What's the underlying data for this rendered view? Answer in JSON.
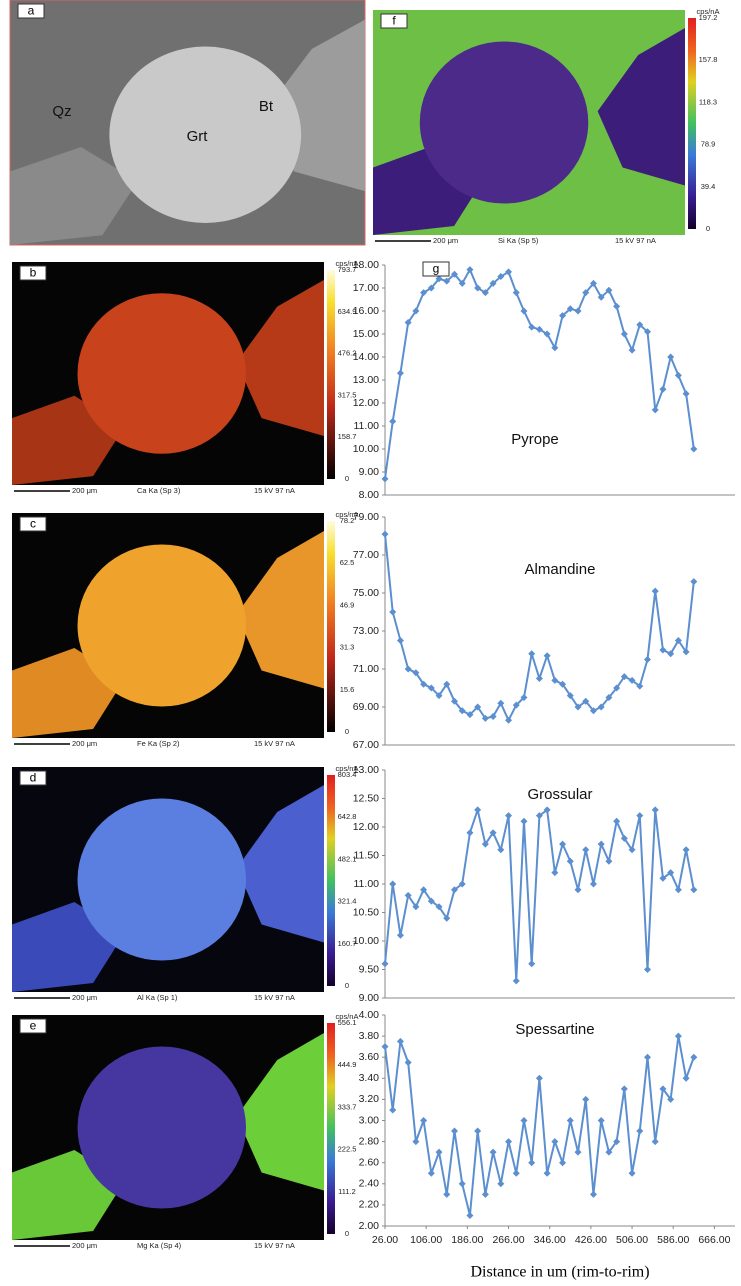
{
  "panels": [
    {
      "letter": "a",
      "labels": [
        "Qz",
        "Grt",
        "Bt"
      ]
    },
    {
      "letter": "f",
      "unit": "cps/nA",
      "scale_ticks": [
        "197.2",
        "157.8",
        "118.3",
        "78.9",
        "39.4",
        "0"
      ],
      "scale_bar": "200 μm",
      "signal": "Si Ka (Sp 5)",
      "conditions": "15 kV 97 nA"
    },
    {
      "letter": "b",
      "unit": "cps/nA",
      "scale_ticks": [
        "793.7",
        "634.9",
        "476.2",
        "317.5",
        "158.7",
        "0"
      ],
      "scale_bar": "200 μm",
      "signal": "Ca Ka (Sp 3)",
      "conditions": "15 kV 97 nA"
    },
    {
      "letter": "c",
      "unit": "cps/nA",
      "scale_ticks": [
        "78.2",
        "62.5",
        "46.9",
        "31.3",
        "15.6",
        "0"
      ],
      "scale_bar": "200 μm",
      "signal": "Fe Ka (Sp 2)",
      "conditions": "15 kV 97 nA"
    },
    {
      "letter": "d",
      "unit": "cps/nA",
      "scale_ticks": [
        "803.4",
        "642.8",
        "482.1",
        "321.4",
        "160.7",
        "0"
      ],
      "scale_bar": "200 μm",
      "signal": "Al Ka (Sp 1)",
      "conditions": "15 kV 97 nA"
    },
    {
      "letter": "e",
      "unit": "cps/nA",
      "scale_ticks": [
        "556.1",
        "444.9",
        "333.7",
        "222.5",
        "111.2",
        "0"
      ],
      "scale_bar": "200 μm",
      "signal": "Mg Ka (Sp 4)",
      "conditions": "15 kV 97 nA"
    }
  ],
  "chart_data": [
    {
      "type": "line",
      "label": "g",
      "title": "Pyrope",
      "color": "#5b8fd0",
      "x": [
        26,
        41,
        56,
        71,
        86,
        101,
        116,
        131,
        146,
        161,
        176,
        191,
        206,
        221,
        236,
        251,
        266,
        281,
        296,
        311,
        326,
        341,
        356,
        371,
        386,
        401,
        416,
        431,
        446,
        461,
        476,
        491,
        506,
        521,
        536,
        551,
        566,
        581,
        596,
        611,
        626
      ],
      "values": [
        8.7,
        11.2,
        13.3,
        15.5,
        16.0,
        16.8,
        17.0,
        17.4,
        17.3,
        17.6,
        17.2,
        17.8,
        17.0,
        16.8,
        17.2,
        17.5,
        17.7,
        16.8,
        16.0,
        15.3,
        15.2,
        15.0,
        14.4,
        15.8,
        16.1,
        16.0,
        16.8,
        17.2,
        16.6,
        16.9,
        16.2,
        15.0,
        14.3,
        15.4,
        15.1,
        11.7,
        12.6,
        14.0,
        13.2,
        12.4,
        10.0
      ],
      "xlim": [
        26,
        706
      ],
      "ylim": [
        8,
        18
      ],
      "yticks": [
        {
          "value": 8,
          "label": "8.00"
        },
        {
          "value": 9,
          "label": "9.00"
        },
        {
          "value": 10,
          "label": "10.00"
        },
        {
          "value": 11,
          "label": "11.00"
        },
        {
          "value": 12,
          "label": "12.00"
        },
        {
          "value": 13,
          "label": "13.00"
        },
        {
          "value": 14,
          "label": "14.00"
        },
        {
          "value": 15,
          "label": "15.00"
        },
        {
          "value": 16,
          "label": "16.00"
        },
        {
          "value": 17,
          "label": "17.00"
        },
        {
          "value": 18,
          "label": "18.00"
        }
      ]
    },
    {
      "type": "line",
      "title": "Almandine",
      "color": "#5b8fd0",
      "x": [
        26,
        41,
        56,
        71,
        86,
        101,
        116,
        131,
        146,
        161,
        176,
        191,
        206,
        221,
        236,
        251,
        266,
        281,
        296,
        311,
        326,
        341,
        356,
        371,
        386,
        401,
        416,
        431,
        446,
        461,
        476,
        491,
        506,
        521,
        536,
        551,
        566,
        581,
        596,
        611,
        626
      ],
      "values": [
        78.1,
        74.0,
        72.5,
        71.0,
        70.8,
        70.2,
        70.0,
        69.6,
        70.2,
        69.3,
        68.8,
        68.6,
        69.0,
        68.4,
        68.5,
        69.2,
        68.3,
        69.1,
        69.5,
        71.8,
        70.5,
        71.7,
        70.4,
        70.2,
        69.6,
        69.0,
        69.3,
        68.8,
        69.0,
        69.5,
        70.0,
        70.6,
        70.4,
        70.1,
        71.5,
        75.1,
        72.0,
        71.8,
        72.5,
        71.9,
        75.6
      ],
      "xlim": [
        26,
        706
      ],
      "ylim": [
        67,
        79
      ],
      "yticks": [
        {
          "value": 67,
          "label": "67.00"
        },
        {
          "value": 69,
          "label": "69.00"
        },
        {
          "value": 71,
          "label": "71.00"
        },
        {
          "value": 73,
          "label": "73.00"
        },
        {
          "value": 75,
          "label": "75.00"
        },
        {
          "value": 77,
          "label": "77.00"
        },
        {
          "value": 79,
          "label": "79.00"
        }
      ]
    },
    {
      "type": "line",
      "title": "Grossular",
      "color": "#5b8fd0",
      "x": [
        26,
        41,
        56,
        71,
        86,
        101,
        116,
        131,
        146,
        161,
        176,
        191,
        206,
        221,
        236,
        251,
        266,
        281,
        296,
        311,
        326,
        341,
        356,
        371,
        386,
        401,
        416,
        431,
        446,
        461,
        476,
        491,
        506,
        521,
        536,
        551,
        566,
        581,
        596,
        611,
        626
      ],
      "values": [
        9.6,
        11.0,
        10.1,
        10.8,
        10.6,
        10.9,
        10.7,
        10.6,
        10.4,
        10.9,
        11.0,
        11.9,
        12.3,
        11.7,
        11.9,
        11.6,
        12.2,
        9.3,
        12.1,
        9.6,
        12.2,
        12.3,
        11.2,
        11.7,
        11.4,
        10.9,
        11.6,
        11.0,
        11.7,
        11.4,
        12.1,
        11.8,
        11.6,
        12.2,
        9.5,
        12.3,
        11.1,
        11.2,
        10.9,
        11.6,
        10.9
      ],
      "xlim": [
        26,
        706
      ],
      "ylim": [
        9,
        13
      ],
      "yticks": [
        {
          "value": 9,
          "label": "9.00"
        },
        {
          "value": 9.5,
          "label": "9.50"
        },
        {
          "value": 10,
          "label": "10.00"
        },
        {
          "value": 10.5,
          "label": "10.50"
        },
        {
          "value": 11,
          "label": "11.00"
        },
        {
          "value": 11.5,
          "label": "11.50"
        },
        {
          "value": 12,
          "label": "12.00"
        },
        {
          "value": 12.5,
          "label": "12.50"
        },
        {
          "value": 13,
          "label": "13.00"
        }
      ]
    },
    {
      "type": "line",
      "title": "Spessartine",
      "color": "#5b8fd0",
      "xlabel": "Distance in um (rim-to-rim)",
      "x": [
        26,
        41,
        56,
        71,
        86,
        101,
        116,
        131,
        146,
        161,
        176,
        191,
        206,
        221,
        236,
        251,
        266,
        281,
        296,
        311,
        326,
        341,
        356,
        371,
        386,
        401,
        416,
        431,
        446,
        461,
        476,
        491,
        506,
        521,
        536,
        551,
        566,
        581,
        596,
        611,
        626
      ],
      "values": [
        3.7,
        3.1,
        3.75,
        3.55,
        2.8,
        3.0,
        2.5,
        2.7,
        2.3,
        2.9,
        2.4,
        2.1,
        2.9,
        2.3,
        2.7,
        2.4,
        2.8,
        2.5,
        3.0,
        2.6,
        3.4,
        2.5,
        2.8,
        2.6,
        3.0,
        2.7,
        3.2,
        2.3,
        3.0,
        2.7,
        2.8,
        3.3,
        2.5,
        2.9,
        3.6,
        2.8,
        3.3,
        3.2,
        3.8,
        3.4,
        3.6
      ],
      "xlim": [
        26,
        706
      ],
      "ylim": [
        2,
        4
      ],
      "yticks": [
        {
          "value": 2,
          "label": "2.00"
        },
        {
          "value": 2.2,
          "label": "2.20"
        },
        {
          "value": 2.4,
          "label": "2.40"
        },
        {
          "value": 2.6,
          "label": "2.60"
        },
        {
          "value": 2.8,
          "label": "2.80"
        },
        {
          "value": 3,
          "label": "3.00"
        },
        {
          "value": 3.2,
          "label": "3.20"
        },
        {
          "value": 3.4,
          "label": "3.40"
        },
        {
          "value": 3.6,
          "label": "3.60"
        },
        {
          "value": 3.8,
          "label": "3.80"
        },
        {
          "value": 4,
          "label": "4.00"
        }
      ],
      "xticks": [
        {
          "value": 26,
          "label": "26.00"
        },
        {
          "value": 106,
          "label": "106.00"
        },
        {
          "value": 186,
          "label": "186.00"
        },
        {
          "value": 266,
          "label": "266.00"
        },
        {
          "value": 346,
          "label": "346.00"
        },
        {
          "value": 426,
          "label": "426.00"
        },
        {
          "value": 506,
          "label": "506.00"
        },
        {
          "value": 586,
          "label": "586.00"
        },
        {
          "value": 666,
          "label": "666.00"
        }
      ]
    }
  ]
}
